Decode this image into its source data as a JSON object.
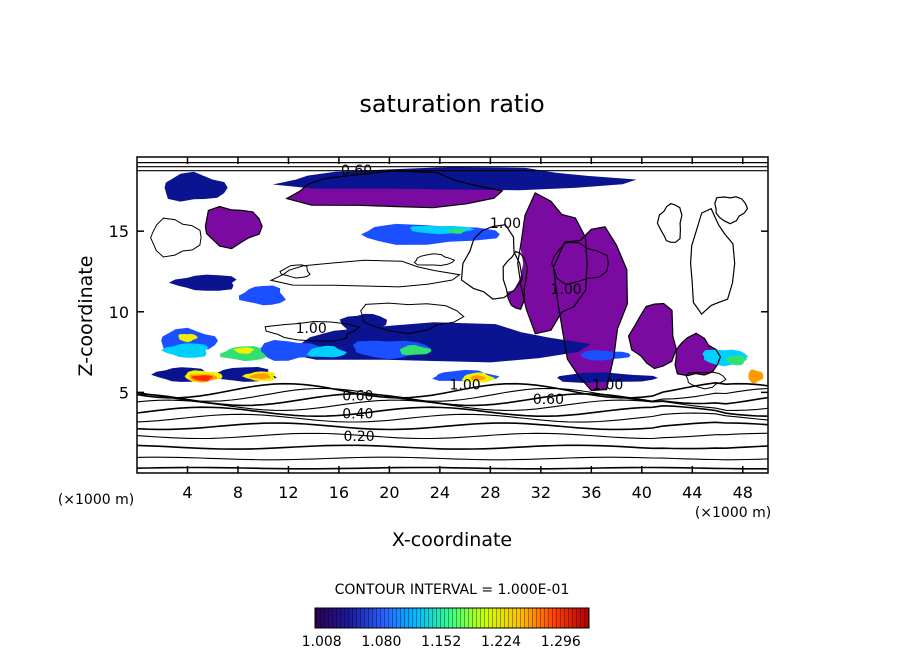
{
  "chart_data": {
    "type": "heatmap",
    "title": "saturation ratio",
    "xlabel": "X-coordinate",
    "ylabel": "Z-coordinate",
    "xunit": "(×1000 m)",
    "zunit": "(×1000 m)",
    "xlim": [
      0,
      50
    ],
    "ylim": [
      0,
      19.6
    ],
    "xticks": [
      "4",
      "8",
      "12",
      "16",
      "20",
      "24",
      "28",
      "32",
      "36",
      "40",
      "44",
      "48"
    ],
    "yticks": [
      "5",
      "10",
      "15"
    ],
    "contour_interval_text": "CONTOUR INTERVAL = 1.000E-01",
    "contour_labels": [
      {
        "text": "0.20",
        "x": 17.6,
        "z": 2.3
      },
      {
        "text": "0.40",
        "x": 17.5,
        "z": 3.7
      },
      {
        "text": "0.60",
        "x": 17.5,
        "z": 4.8
      },
      {
        "text": "0.60",
        "x": 32.6,
        "z": 4.6
      },
      {
        "text": "1.00",
        "x": 26.0,
        "z": 5.5
      },
      {
        "text": "1.00",
        "x": 37.3,
        "z": 5.5
      },
      {
        "text": "1.00",
        "x": 13.8,
        "z": 9.0
      },
      {
        "text": "1.00",
        "x": 34.0,
        "z": 11.4
      },
      {
        "text": "1.00",
        "x": 29.2,
        "z": 15.5
      },
      {
        "text": "0.60",
        "x": 17.4,
        "z": 18.8
      }
    ],
    "colorbar": {
      "ticks": [
        "1.008",
        "1.080",
        "1.152",
        "1.224",
        "1.296"
      ],
      "range": [
        1.0,
        1.33
      ],
      "colors": [
        "#300050",
        "#1a1a9a",
        "#2a60ff",
        "#00c0ff",
        "#40ff80",
        "#d0ff00",
        "#ffc000",
        "#ff4000",
        "#b00000"
      ]
    },
    "fields": {
      "supersaturated_colors": {
        "purple": "#7a0aa0",
        "navy": "#0a1490",
        "blue": "#1a50ff",
        "cyan": "#00d0ff",
        "green": "#30e070",
        "yellow": "#f0f000",
        "orange": "#ff9a00",
        "red": "#ff2800"
      },
      "purple_regions": [
        {
          "x": 20.3,
          "z": 17.5,
          "w": 16,
          "h": 2.2
        },
        {
          "x": 32.8,
          "z": 13.0,
          "w": 5.5,
          "h": 8
        },
        {
          "x": 36.0,
          "z": 10.5,
          "w": 5.5,
          "h": 10
        },
        {
          "x": 41.0,
          "z": 8.5,
          "w": 3.5,
          "h": 4
        },
        {
          "x": 44.3,
          "z": 7.2,
          "w": 3.5,
          "h": 2.5
        },
        {
          "x": 7.5,
          "z": 15.3,
          "w": 4.5,
          "h": 2.4
        },
        {
          "x": 30.0,
          "z": 12.0,
          "w": 1.8,
          "h": 3.5
        }
      ],
      "white_holes": [
        {
          "x": 28.2,
          "z": 13.0,
          "w": 4.5,
          "h": 4.5
        },
        {
          "x": 45.5,
          "z": 13.0,
          "w": 3.5,
          "h": 6
        },
        {
          "x": 47.0,
          "z": 16.4,
          "w": 2.5,
          "h": 1.6
        },
        {
          "x": 42.3,
          "z": 15.5,
          "w": 1.8,
          "h": 2.4
        }
      ],
      "cloud_bands": [
        {
          "x": 25.0,
          "z": 18.2,
          "w": 27,
          "h": 1.4,
          "c": "navy"
        },
        {
          "x": 4.5,
          "z": 17.7,
          "w": 5,
          "h": 1.7,
          "c": "navy"
        },
        {
          "x": 23.0,
          "z": 14.8,
          "w": 11,
          "h": 1.2,
          "c": "blue"
        },
        {
          "x": 24.0,
          "z": 15.1,
          "w": 5,
          "h": 0.5,
          "c": "cyan"
        },
        {
          "x": 25.3,
          "z": 15.0,
          "w": 1.5,
          "h": 0.3,
          "c": "green"
        },
        {
          "x": 5.5,
          "z": 11.8,
          "w": 5,
          "h": 1.0,
          "c": "navy"
        },
        {
          "x": 10.0,
          "z": 11.0,
          "w": 3.5,
          "h": 1.2,
          "c": "blue"
        },
        {
          "x": 23.5,
          "z": 8.0,
          "w": 23,
          "h": 2.4,
          "c": "navy"
        },
        {
          "x": 4.0,
          "z": 8.2,
          "w": 4.5,
          "h": 1.4,
          "c": "blue"
        },
        {
          "x": 12.0,
          "z": 7.6,
          "w": 5,
          "h": 1.2,
          "c": "blue"
        },
        {
          "x": 20.0,
          "z": 7.7,
          "w": 6,
          "h": 1.1,
          "c": "blue"
        },
        {
          "x": 18.0,
          "z": 9.2,
          "w": 3.5,
          "h": 1.4,
          "c": "navy"
        },
        {
          "x": 4.0,
          "z": 7.6,
          "w": 3.5,
          "h": 0.9,
          "c": "cyan"
        },
        {
          "x": 8.5,
          "z": 7.4,
          "w": 3.5,
          "h": 0.9,
          "c": "green"
        },
        {
          "x": 15.0,
          "z": 7.5,
          "w": 3,
          "h": 0.7,
          "c": "cyan"
        },
        {
          "x": 22.0,
          "z": 7.6,
          "w": 2.5,
          "h": 0.6,
          "c": "green"
        },
        {
          "x": 37.0,
          "z": 7.3,
          "w": 4,
          "h": 0.6,
          "c": "blue"
        },
        {
          "x": 46.5,
          "z": 7.2,
          "w": 3.5,
          "h": 1.0,
          "c": "cyan"
        },
        {
          "x": 47.5,
          "z": 7.0,
          "w": 1.6,
          "h": 0.6,
          "c": "green"
        },
        {
          "x": 3.5,
          "z": 6.1,
          "w": 4,
          "h": 0.9,
          "c": "navy"
        },
        {
          "x": 8.5,
          "z": 6.1,
          "w": 5,
          "h": 0.9,
          "c": "navy"
        },
        {
          "x": 26.0,
          "z": 6.0,
          "w": 5,
          "h": 0.7,
          "c": "blue"
        },
        {
          "x": 37.0,
          "z": 5.9,
          "w": 8,
          "h": 0.6,
          "c": "navy"
        },
        {
          "x": 5.2,
          "z": 6.0,
          "w": 3,
          "h": 0.7,
          "c": "yellow"
        },
        {
          "x": 5.2,
          "z": 5.9,
          "w": 2.2,
          "h": 0.5,
          "c": "orange"
        },
        {
          "x": 5.2,
          "z": 5.9,
          "w": 1.6,
          "h": 0.35,
          "c": "red"
        },
        {
          "x": 9.8,
          "z": 6.0,
          "w": 2.5,
          "h": 0.6,
          "c": "yellow"
        },
        {
          "x": 9.8,
          "z": 6.0,
          "w": 1.6,
          "h": 0.35,
          "c": "orange"
        },
        {
          "x": 27.0,
          "z": 5.9,
          "w": 2.5,
          "h": 0.6,
          "c": "yellow"
        },
        {
          "x": 27.0,
          "z": 5.9,
          "w": 1.2,
          "h": 0.3,
          "c": "orange"
        },
        {
          "x": 49.0,
          "z": 6.0,
          "w": 1.2,
          "h": 0.8,
          "c": "orange"
        },
        {
          "x": 4.0,
          "z": 8.4,
          "w": 1.5,
          "h": 0.5,
          "c": "yellow"
        },
        {
          "x": 8.5,
          "z": 7.6,
          "w": 1.5,
          "h": 0.4,
          "c": "yellow"
        }
      ]
    }
  }
}
